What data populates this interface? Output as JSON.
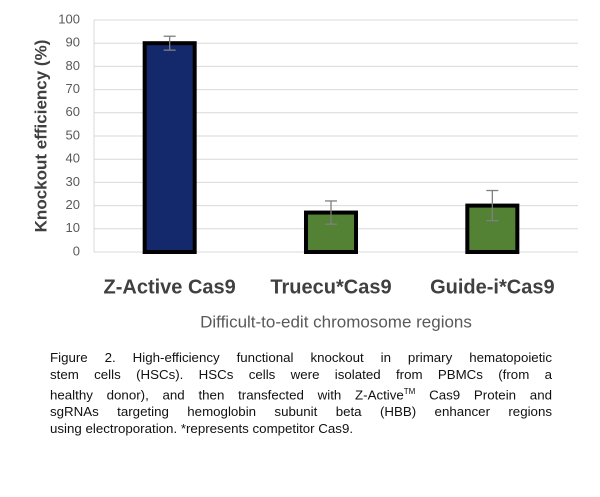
{
  "chart_data": {
    "type": "bar",
    "y_label": "Knockout efficiency (%)",
    "x_label": "Difficult-to-edit chromosome regions",
    "categories": [
      "Z-Active Cas9",
      "Truecu*Cas9",
      "Guide-i*Cas9"
    ],
    "values": [
      90,
      17,
      20
    ],
    "errors": [
      3,
      5,
      6.5
    ],
    "colors": [
      "#14296b",
      "#548235",
      "#548235"
    ],
    "ylim": [
      0,
      100
    ],
    "yticks": [
      0,
      10,
      20,
      30,
      40,
      50,
      60,
      70,
      80,
      90,
      100
    ],
    "grid": true
  },
  "caption": {
    "line1": "Figure 2. High-efficiency functional knockout in primary hematopoietic",
    "line2": "stem cells (HSCs). HSCs cells were isolated from PBMCs (from a",
    "line3_before": "healthy donor), and then transfected with Z-Active",
    "line3_mark": "TM",
    "line3_after": " Cas9 Protein and",
    "line4": "sgRNAs targeting hemoglobin subunit beta (HBB) enhancer regions",
    "line5": "using electroporation. *represents competitor Cas9."
  }
}
